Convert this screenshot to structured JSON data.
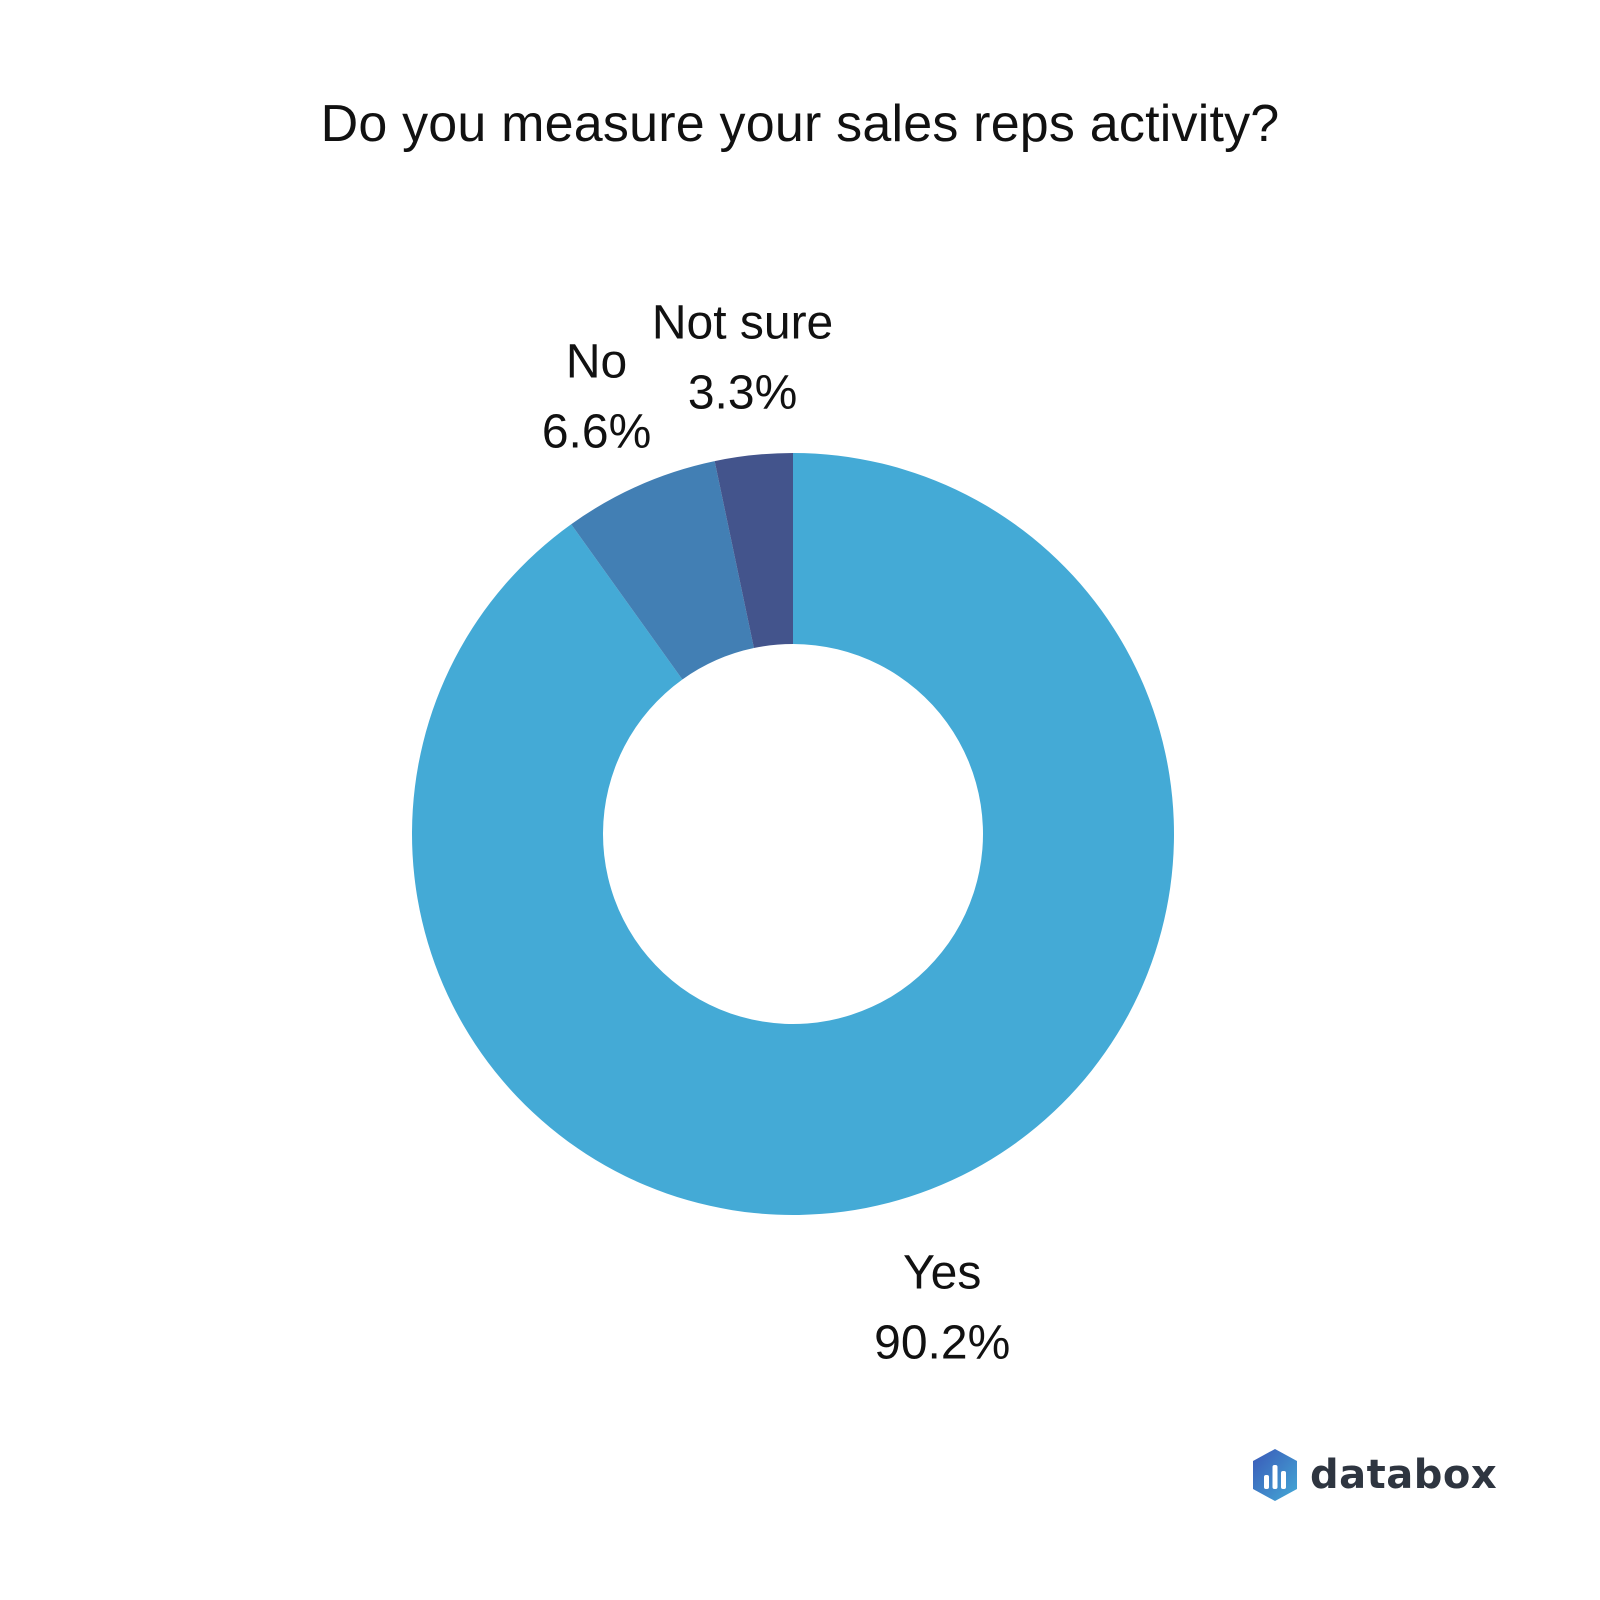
{
  "chart_data": {
    "type": "pie",
    "variant": "donut",
    "title": "Do you measure your sales reps activity?",
    "slices": [
      {
        "label": "Yes",
        "value": 90.2,
        "display": "90.2%",
        "color": "#44aad6"
      },
      {
        "label": "No",
        "value": 6.6,
        "display": "6.6%",
        "color": "#427fb4"
      },
      {
        "label": "Not sure",
        "value": 3.3,
        "display": "3.3%",
        "color": "#43548c"
      }
    ],
    "start": "12 o'clock",
    "direction": "clockwise",
    "legend": "none"
  },
  "branding": {
    "name": "databox",
    "icon": "databox-logo-icon",
    "icon_colors": [
      "#3a58b8",
      "#44aad6"
    ]
  }
}
